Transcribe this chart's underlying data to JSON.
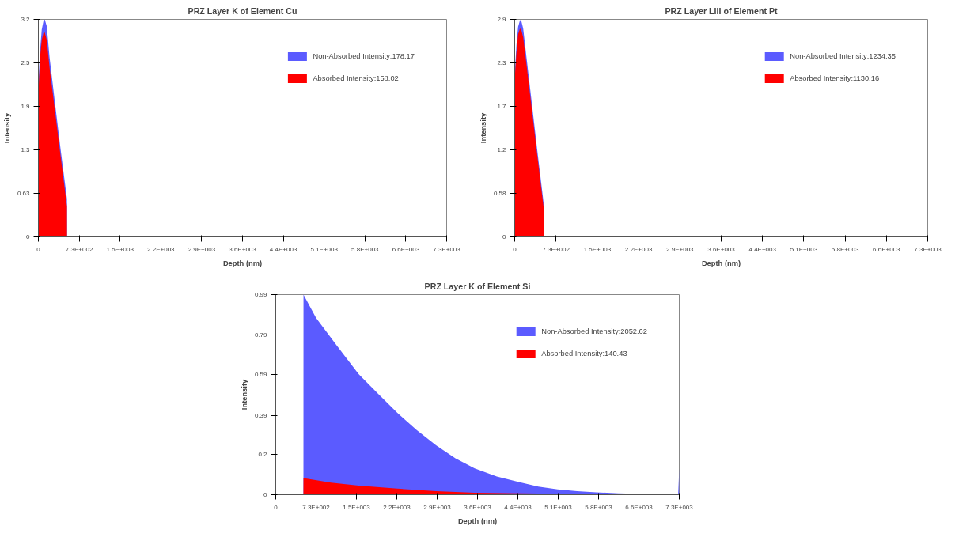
{
  "chart_data": [
    {
      "type": "area",
      "title": "PRZ Layer K of Element Cu",
      "xlabel": "Depth (nm)",
      "ylabel": "Intensity",
      "series": [
        {
          "name": "Non-Absorbed Intensity:178.17",
          "color": "#5b5bff",
          "x": [
            0,
            30,
            60,
            90,
            114,
            150,
            200,
            300,
            400,
            511,
            512
          ],
          "values": [
            2.2,
            2.7,
            3.0,
            3.12,
            3.15,
            3.05,
            2.6,
            1.92,
            1.25,
            0.55,
            0
          ]
        },
        {
          "name": "Absorbed Intensity:158.02",
          "color": "#ff0000",
          "x": [
            0,
            30,
            60,
            90,
            114,
            150,
            200,
            300,
            400,
            511,
            512
          ],
          "values": [
            2.08,
            2.6,
            2.85,
            2.95,
            2.96,
            2.85,
            2.45,
            1.8,
            1.15,
            0.44,
            0
          ]
        }
      ],
      "xlim": [
        0,
        7300
      ],
      "ylim": [
        0,
        3.15
      ],
      "xticks": [
        0,
        {
          "value": 730,
          "label": "7.3E+002"
        },
        {
          "value": 1460,
          "label": "1.5E+003"
        },
        {
          "value": 2190,
          "label": "2.2E+003"
        },
        {
          "value": 2920,
          "label": "2.9E+003"
        },
        {
          "value": 3650,
          "label": "3.6E+003"
        },
        {
          "value": 4380,
          "label": "4.4E+003"
        },
        {
          "value": 5110,
          "label": "5.1E+003"
        },
        {
          "value": 5840,
          "label": "5.8E+003"
        },
        {
          "value": 6570,
          "label": "6.6E+003"
        },
        {
          "value": 7300,
          "label": "7.3E+003"
        }
      ],
      "yticks": [
        0,
        0.63,
        {
          "value": 1.26,
          "label": "1.3"
        },
        {
          "value": 1.89,
          "label": "1.9"
        },
        {
          "value": 2.52,
          "label": "2.5"
        },
        {
          "value": 3.15,
          "label": "3.2"
        }
      ],
      "legend": "top right",
      "grid": false
    },
    {
      "type": "area",
      "title": "PRZ Layer LIII of Element Pt",
      "xlabel": "Depth (nm)",
      "ylabel": "Intensity",
      "series": [
        {
          "name": "Non-Absorbed Intensity:1234.35",
          "color": "#5b5bff",
          "x": [
            0,
            30,
            60,
            90,
            110,
            150,
            200,
            300,
            400,
            518,
            519
          ],
          "values": [
            2.15,
            2.55,
            2.8,
            2.88,
            2.9,
            2.78,
            2.45,
            1.8,
            1.15,
            0.41,
            0
          ]
        },
        {
          "name": "Absorbed Intensity:1130.16",
          "color": "#ff0000",
          "x": [
            0,
            30,
            60,
            90,
            110,
            150,
            200,
            300,
            400,
            518,
            519
          ],
          "values": [
            2.1,
            2.45,
            2.7,
            2.77,
            2.78,
            2.66,
            2.35,
            1.72,
            1.08,
            0.35,
            0
          ]
        }
      ],
      "xlim": [
        0,
        7300
      ],
      "ylim": [
        0,
        2.9
      ],
      "xticks": [
        0,
        {
          "value": 730,
          "label": "7.3E+002"
        },
        {
          "value": 1460,
          "label": "1.5E+003"
        },
        {
          "value": 2190,
          "label": "2.2E+003"
        },
        {
          "value": 2920,
          "label": "2.9E+003"
        },
        {
          "value": 3650,
          "label": "3.6E+003"
        },
        {
          "value": 4380,
          "label": "4.4E+003"
        },
        {
          "value": 5110,
          "label": "5.1E+003"
        },
        {
          "value": 5840,
          "label": "5.8E+003"
        },
        {
          "value": 6570,
          "label": "6.6E+003"
        },
        {
          "value": 7300,
          "label": "7.3E+003"
        }
      ],
      "yticks": [
        0,
        0.58,
        {
          "value": 1.16,
          "label": "1.2"
        },
        {
          "value": 1.74,
          "label": "1.7"
        },
        {
          "value": 2.32,
          "label": "2.3"
        },
        2.9
      ],
      "legend": "top right",
      "grid": false
    },
    {
      "type": "area",
      "title": "PRZ Layer K of Element Si",
      "xlabel": "Depth (nm)",
      "ylabel": "Intensity",
      "series": [
        {
          "name": "Non-Absorbed Intensity:2052.62",
          "color": "#5b5bff",
          "x": [
            501,
            502,
            730,
            1100,
            1500,
            1850,
            2200,
            2550,
            2900,
            3250,
            3600,
            4000,
            4400,
            4750,
            5100,
            5450,
            5800,
            6200,
            6600,
            7000,
            7280,
            7300
          ],
          "values": [
            0,
            0.99,
            0.875,
            0.74,
            0.597,
            0.5,
            0.405,
            0.32,
            0.245,
            0.18,
            0.13,
            0.09,
            0.063,
            0.04,
            0.026,
            0.018,
            0.012,
            0.007,
            0.004,
            0.002,
            0.001,
            0.13
          ]
        },
        {
          "name": "Absorbed Intensity:140.43",
          "color": "#ff0000",
          "x": [
            501,
            502,
            1000,
            1500,
            2200,
            2900,
            3600,
            4400,
            5100,
            5800,
            6600,
            7300
          ],
          "values": [
            0,
            0.082,
            0.06,
            0.045,
            0.03,
            0.018,
            0.01,
            0.007,
            0.005,
            0.004,
            0.003,
            0.003
          ]
        }
      ],
      "xlim": [
        0,
        7300
      ],
      "ylim": [
        0,
        0.99
      ],
      "xticks": [
        0,
        {
          "value": 730,
          "label": "7.3E+002"
        },
        {
          "value": 1460,
          "label": "1.5E+003"
        },
        {
          "value": 2190,
          "label": "2.2E+003"
        },
        {
          "value": 2920,
          "label": "2.9E+003"
        },
        {
          "value": 3650,
          "label": "3.6E+003"
        },
        {
          "value": 4380,
          "label": "4.4E+003"
        },
        {
          "value": 5110,
          "label": "5.1E+003"
        },
        {
          "value": 5840,
          "label": "5.8E+003"
        },
        {
          "value": 6570,
          "label": "6.6E+003"
        },
        {
          "value": 7300,
          "label": "7.3E+003"
        }
      ],
      "yticks": [
        0,
        {
          "value": 0.198,
          "label": "0.2"
        },
        0.39,
        {
          "value": 0.594,
          "label": "0.59"
        },
        {
          "value": 0.792,
          "label": "0.79"
        },
        0.99
      ],
      "legend": "top right",
      "grid": false
    }
  ]
}
